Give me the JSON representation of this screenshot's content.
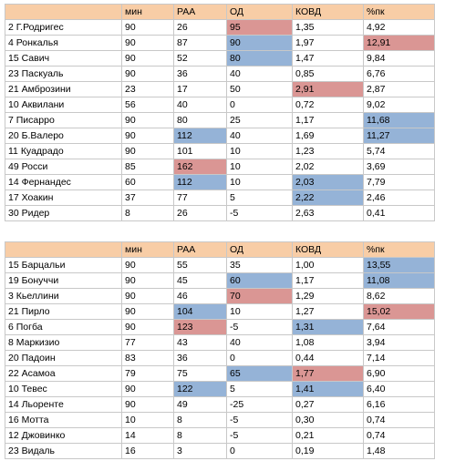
{
  "tables": [
    {
      "headers": [
        "",
        "мин",
        "РАА",
        "ОД",
        "КОВД",
        "%пк"
      ],
      "rows": [
        {
          "cells": [
            "2 Г.Родригес",
            "90",
            "26",
            "95",
            "1,35",
            "4,92"
          ],
          "hl": [
            "",
            "",
            "",
            "red",
            "",
            ""
          ]
        },
        {
          "cells": [
            "4 Ронкалья",
            "90",
            "87",
            "90",
            "1,97",
            "12,91"
          ],
          "hl": [
            "",
            "",
            "",
            "blue",
            "",
            "red"
          ]
        },
        {
          "cells": [
            "15 Савич",
            "90",
            "52",
            "80",
            "1,47",
            "9,84"
          ],
          "hl": [
            "",
            "",
            "",
            "blue",
            "",
            ""
          ]
        },
        {
          "cells": [
            "23 Паскуаль",
            "90",
            "36",
            "40",
            "0,85",
            "6,76"
          ],
          "hl": [
            "",
            "",
            "",
            "",
            "",
            ""
          ]
        },
        {
          "cells": [
            "21 Амброзини",
            "23",
            "17",
            "50",
            "2,91",
            "2,87"
          ],
          "hl": [
            "",
            "",
            "",
            "",
            "red",
            ""
          ]
        },
        {
          "cells": [
            "10 Аквилани",
            "56",
            "40",
            "0",
            "0,72",
            "9,02"
          ],
          "hl": [
            "",
            "",
            "",
            "",
            "",
            ""
          ]
        },
        {
          "cells": [
            "7 Писарро",
            "90",
            "80",
            "25",
            "1,17",
            "11,68"
          ],
          "hl": [
            "",
            "",
            "",
            "",
            "",
            "blue"
          ]
        },
        {
          "cells": [
            "20 Б.Валеро",
            "90",
            "112",
            "40",
            "1,69",
            "11,27"
          ],
          "hl": [
            "",
            "",
            "blue",
            "",
            "",
            "blue"
          ]
        },
        {
          "cells": [
            "11 Куадрадо",
            "90",
            "101",
            "10",
            "1,23",
            "5,74"
          ],
          "hl": [
            "",
            "",
            "",
            "",
            "",
            ""
          ]
        },
        {
          "cells": [
            "49 Росси",
            "85",
            "162",
            "10",
            "2,02",
            "3,69"
          ],
          "hl": [
            "",
            "",
            "red",
            "",
            "",
            ""
          ]
        },
        {
          "cells": [
            "14 Фернандес",
            "60",
            "112",
            "10",
            "2,03",
            "7,79"
          ],
          "hl": [
            "",
            "",
            "blue",
            "",
            "blue",
            ""
          ]
        },
        {
          "cells": [
            "17 Хоакин",
            "37",
            "77",
            "5",
            "2,22",
            "2,46"
          ],
          "hl": [
            "",
            "",
            "",
            "",
            "blue",
            ""
          ]
        },
        {
          "cells": [
            "30 Ридер",
            "8",
            "26",
            "-5",
            "2,63",
            "0,41"
          ],
          "hl": [
            "",
            "",
            "",
            "",
            "",
            ""
          ]
        }
      ]
    },
    {
      "headers": [
        "",
        "мин",
        "РАА",
        "ОД",
        "КОВД",
        "%пк"
      ],
      "rows": [
        {
          "cells": [
            "15 Барцальи",
            "90",
            "55",
            "35",
            "1,00",
            "13,55"
          ],
          "hl": [
            "",
            "",
            "",
            "",
            "",
            "blue"
          ]
        },
        {
          "cells": [
            "19 Бонуччи",
            "90",
            "45",
            "60",
            "1,17",
            "11,08"
          ],
          "hl": [
            "",
            "",
            "",
            "blue",
            "",
            "blue"
          ]
        },
        {
          "cells": [
            "3 Кьеллини",
            "90",
            "46",
            "70",
            "1,29",
            "8,62"
          ],
          "hl": [
            "",
            "",
            "",
            "red",
            "",
            ""
          ]
        },
        {
          "cells": [
            "21 Пирло",
            "90",
            "104",
            "10",
            "1,27",
            "15,02"
          ],
          "hl": [
            "",
            "",
            "blue",
            "",
            "",
            "red"
          ]
        },
        {
          "cells": [
            "6 Погба",
            "90",
            "123",
            "-5",
            "1,31",
            "7,64"
          ],
          "hl": [
            "",
            "",
            "red",
            "",
            "blue",
            ""
          ]
        },
        {
          "cells": [
            "8 Маркизио",
            "77",
            "43",
            "40",
            "1,08",
            "3,94"
          ],
          "hl": [
            "",
            "",
            "",
            "",
            "",
            ""
          ]
        },
        {
          "cells": [
            "20 Падоин",
            "83",
            "36",
            "0",
            "0,44",
            "7,14"
          ],
          "hl": [
            "",
            "",
            "",
            "",
            "",
            ""
          ]
        },
        {
          "cells": [
            "22 Асамоа",
            "79",
            "75",
            "65",
            "1,77",
            "6,90"
          ],
          "hl": [
            "",
            "",
            "",
            "blue",
            "red",
            ""
          ]
        },
        {
          "cells": [
            "10 Тевес",
            "90",
            "122",
            "5",
            "1,41",
            "6,40"
          ],
          "hl": [
            "",
            "",
            "blue",
            "",
            "blue",
            ""
          ]
        },
        {
          "cells": [
            "14 Льоренте",
            "90",
            "49",
            "-25",
            "0,27",
            "6,16"
          ],
          "hl": [
            "",
            "",
            "",
            "",
            "",
            ""
          ]
        },
        {
          "cells": [
            "16 Мотта",
            "10",
            "8",
            "-5",
            "0,30",
            "0,74"
          ],
          "hl": [
            "",
            "",
            "",
            "",
            "",
            ""
          ]
        },
        {
          "cells": [
            "12 Джовинко",
            "14",
            "8",
            "-5",
            "0,21",
            "0,74"
          ],
          "hl": [
            "",
            "",
            "",
            "",
            "",
            ""
          ]
        },
        {
          "cells": [
            "23 Видаль",
            "16",
            "3",
            "0",
            "0,19",
            "1,48"
          ],
          "hl": [
            "",
            "",
            "",
            "",
            "",
            ""
          ]
        }
      ]
    }
  ],
  "colors": {
    "red": "#da9694",
    "blue": "#95b3d7",
    "header": "#f8cda6"
  }
}
